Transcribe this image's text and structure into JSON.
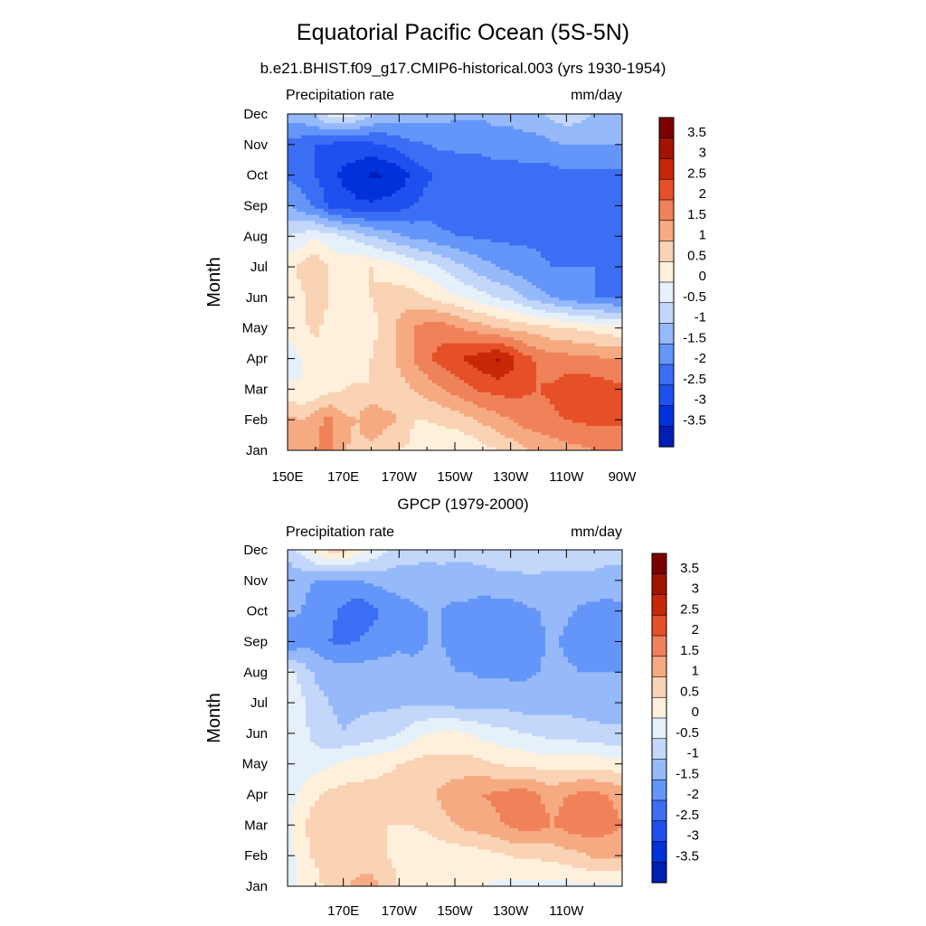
{
  "figure": {
    "title": "Equatorial Pacific Ocean (5S-5N)"
  },
  "chart_data": [
    {
      "type": "heatmap",
      "title": "b.e21.BHIST.f09_g17.CMIP6-historical.003 (yrs 1930-1954)",
      "left_label": "Precipitation rate",
      "right_label": "mm/day",
      "ylabel": "Month",
      "x_tick_labels": [
        "150E",
        "170E",
        "170W",
        "150W",
        "130W",
        "110W",
        "90W"
      ],
      "x_tick_lon": [
        150,
        170,
        190,
        210,
        230,
        250,
        270
      ],
      "xlim": [
        150,
        270
      ],
      "y_tick_labels": [
        "Jan",
        "Feb",
        "Mar",
        "Apr",
        "May",
        "Jun",
        "Jul",
        "Aug",
        "Sep",
        "Oct",
        "Nov",
        "Dec"
      ],
      "levels": [
        -3.5,
        -3,
        -2.5,
        -2,
        -1.5,
        -1,
        -0.5,
        0,
        0.5,
        1,
        1.5,
        2,
        2.5,
        3,
        3.5
      ],
      "colorbar_labels": [
        "3.5",
        "3",
        "2.5",
        "2",
        "1.5",
        "1",
        "0.5",
        "0",
        "-0.5",
        "-1",
        "-1.5",
        "-2",
        "-2.5",
        "-3",
        "-3.5"
      ],
      "lon": [
        150,
        155,
        160,
        165,
        170,
        175,
        180,
        185,
        190,
        195,
        200,
        205,
        210,
        215,
        220,
        225,
        230,
        235,
        240,
        245,
        250,
        255,
        260,
        265,
        270
      ],
      "values": [
        [
          1.8,
          1.6,
          2.0,
          2.2,
          1.6,
          1.3,
          1.3,
          1.1,
          1.0,
          0.9,
          0.8,
          0.6,
          0.5,
          0.6,
          0.8,
          1.0,
          1.2,
          1.4,
          1.6,
          1.7,
          1.8,
          1.9,
          2.0,
          2.1,
          2.2
        ],
        [
          1.6,
          1.5,
          1.8,
          2.2,
          1.6,
          1.5,
          2.0,
          1.7,
          1.5,
          1.0,
          1.0,
          1.1,
          1.2,
          1.4,
          1.6,
          1.8,
          2.0,
          2.2,
          2.3,
          2.4,
          2.5,
          2.6,
          2.6,
          2.6,
          2.6
        ],
        [
          0.6,
          0.5,
          0.6,
          0.8,
          1.0,
          1.1,
          1.0,
          1.1,
          1.3,
          1.5,
          1.7,
          2.0,
          2.2,
          2.4,
          2.6,
          2.7,
          2.7,
          2.6,
          2.5,
          2.6,
          2.8,
          2.9,
          2.8,
          2.7,
          2.6
        ],
        [
          0.2,
          0.5,
          0.8,
          0.9,
          0.8,
          0.6,
          1.0,
          1.3,
          1.6,
          2.0,
          2.4,
          2.7,
          2.9,
          3.1,
          3.3,
          3.6,
          3.2,
          2.7,
          2.4,
          2.2,
          2.2,
          2.1,
          2.1,
          2.0,
          2.0
        ],
        [
          0.6,
          0.9,
          1.1,
          0.8,
          0.5,
          0.6,
          0.8,
          1.2,
          1.6,
          2.0,
          2.2,
          2.3,
          2.1,
          1.9,
          1.7,
          1.5,
          1.4,
          1.3,
          1.2,
          1.1,
          1.0,
          0.9,
          0.8,
          0.7,
          0.6
        ],
        [
          0.6,
          0.9,
          1.3,
          1.0,
          0.8,
          0.9,
          1.0,
          1.2,
          1.3,
          1.2,
          1.0,
          0.8,
          0.6,
          0.4,
          0.2,
          0.0,
          -0.2,
          -0.5,
          -0.8,
          -1.0,
          -1.2,
          -1.4,
          -1.5,
          -1.5,
          -1.6
        ],
        [
          0.7,
          1.2,
          1.4,
          1.0,
          0.8,
          0.9,
          1.0,
          0.8,
          0.6,
          0.4,
          0.2,
          0.0,
          -0.3,
          -0.6,
          -0.8,
          -1.0,
          -1.2,
          -1.3,
          -1.4,
          -1.5,
          -1.5,
          -1.5,
          -1.5,
          -1.6,
          -1.6
        ],
        [
          0.0,
          0.2,
          0.4,
          0.2,
          0.0,
          -0.2,
          -0.5,
          -0.7,
          -0.9,
          -1.1,
          -1.2,
          -1.4,
          -1.5,
          -1.5,
          -1.6,
          -1.6,
          -1.6,
          -1.6,
          -1.6,
          -1.7,
          -1.7,
          -1.7,
          -1.7,
          -1.7,
          -1.8
        ],
        [
          -1.0,
          -1.3,
          -1.6,
          -2.1,
          -2.3,
          -2.4,
          -2.4,
          -2.3,
          -2.2,
          -2.0,
          -1.8,
          -1.8,
          -1.7,
          -1.7,
          -1.7,
          -1.7,
          -1.7,
          -1.7,
          -1.7,
          -1.7,
          -1.7,
          -1.8,
          -1.8,
          -1.8,
          -1.8
        ],
        [
          -1.6,
          -1.7,
          -2.0,
          -2.3,
          -2.6,
          -2.8,
          -3.1,
          -3.0,
          -2.8,
          -2.4,
          -2.1,
          -1.9,
          -1.8,
          -1.7,
          -1.7,
          -1.7,
          -1.7,
          -1.7,
          -1.7,
          -1.7,
          -1.6,
          -1.6,
          -1.6,
          -1.6,
          -1.6
        ],
        [
          -1.6,
          -1.8,
          -2.0,
          -2.1,
          -2.2,
          -2.2,
          -2.1,
          -2.0,
          -1.8,
          -1.6,
          -1.5,
          -1.4,
          -1.4,
          -1.4,
          -1.4,
          -1.3,
          -1.3,
          -1.2,
          -1.2,
          -1.1,
          -1.0,
          -1.0,
          -1.0,
          -1.0,
          -1.0
        ],
        [
          -0.8,
          -0.6,
          -0.4,
          0.2,
          0.4,
          0.0,
          -0.4,
          -0.6,
          -0.6,
          -0.7,
          -0.8,
          -0.8,
          -0.9,
          -0.9,
          -0.9,
          -0.8,
          -0.8,
          -0.7,
          -0.6,
          -0.3,
          -0.2,
          -0.3,
          -0.5,
          -0.6,
          -0.7
        ]
      ]
    },
    {
      "type": "heatmap",
      "title": "GPCP (1979-2000)",
      "left_label": "Precipitation rate",
      "right_label": "mm/day",
      "ylabel": "Month",
      "x_tick_labels": [
        "170E",
        "170W",
        "150W",
        "130W",
        "110W"
      ],
      "x_tick_lon": [
        170,
        190,
        210,
        230,
        250
      ],
      "xlim": [
        150,
        270
      ],
      "y_tick_labels": [
        "Jan",
        "Feb",
        "Mar",
        "Apr",
        "May",
        "Jun",
        "Jul",
        "Aug",
        "Sep",
        "Oct",
        "Nov",
        "Dec"
      ],
      "levels": [
        -3.5,
        -3,
        -2.5,
        -2,
        -1.5,
        -1,
        -0.5,
        0,
        0.5,
        1,
        1.5,
        2,
        2.5,
        3,
        3.5
      ],
      "colorbar_labels": [
        "3.5",
        "3",
        "2.5",
        "2",
        "1.5",
        "1",
        "0.5",
        "0",
        "-0.5",
        "-1",
        "-1.5",
        "-2",
        "-2.5",
        "-3",
        "-3.5"
      ],
      "lon": [
        150,
        155,
        160,
        165,
        170,
        175,
        180,
        185,
        190,
        195,
        200,
        205,
        210,
        215,
        220,
        225,
        230,
        235,
        240,
        245,
        250,
        255,
        260,
        265,
        270
      ],
      "values": [
        [
          0.3,
          0.6,
          0.8,
          1.2,
          1.4,
          1.6,
          1.7,
          1.3,
          1.0,
          0.8,
          0.7,
          0.6,
          0.5,
          0.5,
          0.5,
          0.4,
          0.4,
          0.3,
          0.3,
          0.3,
          0.3,
          0.4,
          0.4,
          0.4,
          0.4
        ],
        [
          0.3,
          0.7,
          1.1,
          1.3,
          1.4,
          1.3,
          1.2,
          1.0,
          0.9,
          0.8,
          0.7,
          0.7,
          0.7,
          0.7,
          0.8,
          0.9,
          1.0,
          1.1,
          1.1,
          1.2,
          1.3,
          1.4,
          1.6,
          1.6,
          1.6
        ],
        [
          0.4,
          0.9,
          1.3,
          1.4,
          1.3,
          1.2,
          1.1,
          1.0,
          1.0,
          1.0,
          1.1,
          1.3,
          1.5,
          1.7,
          1.8,
          1.9,
          2.1,
          2.2,
          2.2,
          2.0,
          2.2,
          2.3,
          2.3,
          2.2,
          2.0
        ],
        [
          0.3,
          0.6,
          0.9,
          1.1,
          1.2,
          1.2,
          1.2,
          1.2,
          1.2,
          1.3,
          1.4,
          1.6,
          1.8,
          1.9,
          2.0,
          2.1,
          2.2,
          2.2,
          2.0,
          1.8,
          2.0,
          2.1,
          2.1,
          2.0,
          1.8
        ],
        [
          0.1,
          0.2,
          0.3,
          0.4,
          0.6,
          0.7,
          0.8,
          0.9,
          1.0,
          1.1,
          1.2,
          1.2,
          1.2,
          1.2,
          1.1,
          1.0,
          0.9,
          0.9,
          0.8,
          0.8,
          0.8,
          0.8,
          0.8,
          0.7,
          0.7
        ],
        [
          0.5,
          0.2,
          -0.2,
          -0.4,
          -0.5,
          -0.4,
          -0.3,
          -0.2,
          0.0,
          0.3,
          0.5,
          0.6,
          0.6,
          0.5,
          0.3,
          0.2,
          0.1,
          0.0,
          -0.1,
          -0.2,
          -0.2,
          -0.3,
          -0.3,
          -0.4,
          -0.4
        ],
        [
          0.5,
          0.1,
          -0.3,
          -0.5,
          -0.6,
          -0.6,
          -0.6,
          -0.6,
          -0.6,
          -0.6,
          -0.6,
          -0.6,
          -0.7,
          -0.7,
          -0.7,
          -0.7,
          -0.7,
          -0.8,
          -0.8,
          -0.7,
          -0.7,
          -0.7,
          -0.8,
          -0.8,
          -0.8
        ],
        [
          0.3,
          -0.2,
          -0.6,
          -0.7,
          -0.8,
          -0.8,
          -0.8,
          -0.8,
          -0.8,
          -0.9,
          -0.9,
          -0.9,
          -1.0,
          -1.0,
          -1.1,
          -1.1,
          -1.1,
          -1.1,
          -1.0,
          -0.9,
          -0.9,
          -1.0,
          -1.0,
          -1.0,
          -1.0
        ],
        [
          -1.6,
          -1.2,
          -1.2,
          -1.5,
          -1.6,
          -1.5,
          -1.3,
          -1.2,
          -1.1,
          -1.1,
          -1.0,
          -1.0,
          -1.1,
          -1.2,
          -1.3,
          -1.3,
          -1.3,
          -1.2,
          -1.1,
          -0.9,
          -1.1,
          -1.3,
          -1.3,
          -1.2,
          -1.1
        ],
        [
          -0.8,
          -1.0,
          -1.2,
          -1.4,
          -1.6,
          -1.9,
          -1.7,
          -1.4,
          -1.2,
          -1.1,
          -1.0,
          -1.0,
          -1.1,
          -1.1,
          -1.2,
          -1.2,
          -1.2,
          -1.1,
          -1.0,
          -0.9,
          -0.9,
          -1.1,
          -1.2,
          -1.2,
          -1.1
        ],
        [
          -0.6,
          -0.9,
          -1.0,
          -1.1,
          -1.1,
          -1.0,
          -0.9,
          -0.8,
          -0.8,
          -0.7,
          -0.7,
          -0.7,
          -0.8,
          -0.8,
          -0.8,
          -0.7,
          -0.7,
          -0.6,
          -0.6,
          -0.6,
          -0.6,
          -0.6,
          -0.6,
          -0.7,
          -0.7
        ],
        [
          -0.5,
          0.2,
          0.8,
          1.2,
          1.2,
          0.8,
          0.4,
          0.1,
          -0.2,
          -0.3,
          -0.4,
          -0.3,
          -0.3,
          -0.3,
          -0.2,
          -0.1,
          -0.1,
          -0.2,
          -0.2,
          -0.3,
          -0.3,
          -0.3,
          -0.3,
          -0.3,
          -0.3
        ]
      ]
    }
  ]
}
